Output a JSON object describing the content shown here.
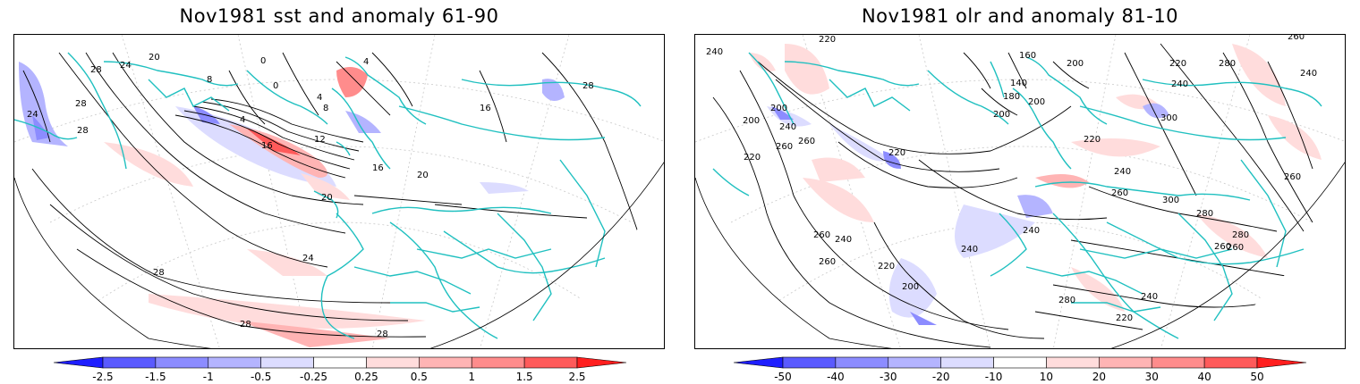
{
  "panels": [
    {
      "title": "Nov1981 sst and anomaly 61-90",
      "colorbar": {
        "labels": [
          "-2.5",
          "-1.5",
          "-1",
          "-0.5",
          "-0.25",
          "0.25",
          "0.5",
          "1",
          "1.5",
          "2.5"
        ],
        "colors": [
          "#1e1eff",
          "#5a5aff",
          "#8c8cff",
          "#b4b4ff",
          "#dcdcff",
          "#ffffff",
          "#ffdcdc",
          "#ffb4b4",
          "#ff8c8c",
          "#ff5a5a",
          "#ff1e1e"
        ]
      },
      "contour_labels": [
        "28",
        "28",
        "24",
        "24",
        "28",
        "0",
        "4",
        "8",
        "4",
        "0",
        "8",
        "4",
        "16",
        "12",
        "16",
        "20",
        "20",
        "24",
        "28",
        "28",
        "28",
        "16",
        "20",
        "28"
      ]
    },
    {
      "title": "Nov1981 olr and anomaly 81-10",
      "colorbar": {
        "labels": [
          "-50",
          "-40",
          "-30",
          "-20",
          "-10",
          "10",
          "20",
          "30",
          "40",
          "50"
        ],
        "colors": [
          "#1e1eff",
          "#5a5aff",
          "#8c8cff",
          "#b4b4ff",
          "#dcdcff",
          "#ffffff",
          "#ffdcdc",
          "#ffb4b4",
          "#ff8c8c",
          "#ff5a5a",
          "#ff1e1e"
        ]
      },
      "contour_labels": [
        "240",
        "220",
        "160",
        "140",
        "180",
        "200",
        "200",
        "220",
        "280",
        "240",
        "240",
        "260",
        "200",
        "240",
        "260",
        "200",
        "220",
        "220",
        "300",
        "200",
        "220",
        "240",
        "260",
        "260",
        "300",
        "280",
        "260",
        "240",
        "260",
        "240",
        "220",
        "200",
        "240",
        "260",
        "260",
        "280",
        "240",
        "260",
        "220",
        "280"
      ]
    }
  ],
  "colors": {
    "coastline": "#20c0c0",
    "contour": "#000000",
    "frame": "#000000"
  }
}
